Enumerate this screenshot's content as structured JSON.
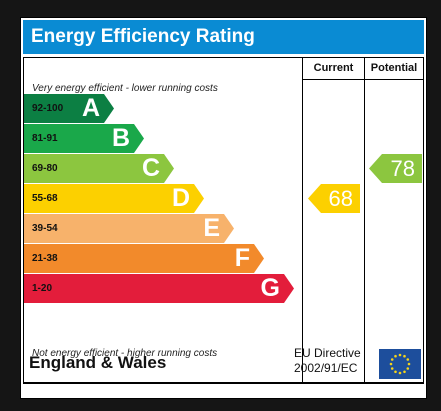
{
  "title": "Energy Efficiency Rating",
  "columns": {
    "current": "Current",
    "potential": "Potential"
  },
  "top_note": "Very energy efficient - lower running costs",
  "bottom_note": "Not energy efficient - higher running costs",
  "bands": [
    {
      "range": "92-100",
      "letter": "A",
      "color": "#0c7f43"
    },
    {
      "range": "81-91",
      "letter": "B",
      "color": "#1aa84a"
    },
    {
      "range": "69-80",
      "letter": "C",
      "color": "#8cc63f"
    },
    {
      "range": "55-68",
      "letter": "D",
      "color": "#fcd000"
    },
    {
      "range": "39-54",
      "letter": "E",
      "color": "#f7b26b"
    },
    {
      "range": "21-38",
      "letter": "F",
      "color": "#f28a2b"
    },
    {
      "range": "1-20",
      "letter": "G",
      "color": "#e31d3b"
    }
  ],
  "current": {
    "value": "68",
    "color": "#fcd000"
  },
  "potential": {
    "value": "78",
    "color": "#8cc63f"
  },
  "footer": {
    "region": "England & Wales",
    "directive_line1": "EU Directive",
    "directive_line2": "2002/91/EC"
  },
  "flag_color": "#1d4e9c",
  "star_color": "#f4d31a"
}
